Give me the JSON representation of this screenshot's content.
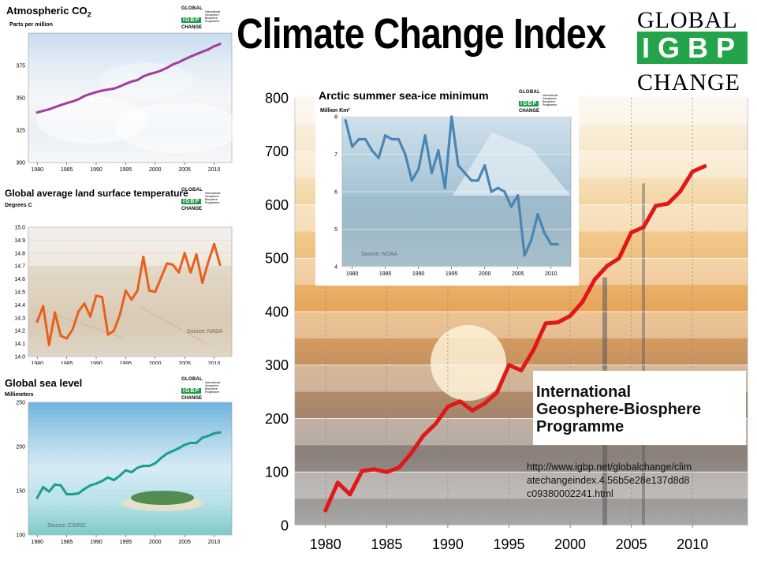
{
  "header": {
    "title": "Climate Change Index",
    "logo": {
      "line1": "GLOBAL",
      "line2": "IGBP",
      "line3": "CHANGE"
    }
  },
  "small_logo": {
    "line1": "GLOBAL",
    "line2": "IGBP",
    "line3": "CHANGE",
    "subtitle": "International Geosphere-Biosphere Programme"
  },
  "igbp": {
    "name_line1": "International",
    "name_line2": "Geosphere-Biosphere",
    "name_line3": "Programme",
    "url": "http://www.igbp.net/globalchange/climatechangeindex.4.56b5e28e137d8d8c09380002241.html"
  },
  "colors": {
    "co2": "#a33d9c",
    "temp": "#e8601c",
    "sea": "#1a9e8c",
    "ice": "#4a86b4",
    "index": "#e01818",
    "logo_green": "#23a34a"
  },
  "chart_data": [
    {
      "type": "line",
      "title": "Atmospheric CO2",
      "ylabel": "Parts per million",
      "ylim": [
        300,
        400
      ],
      "yticks": [
        300,
        325,
        350,
        375
      ],
      "xticks": [
        1980,
        1985,
        1990,
        1995,
        2000,
        2005,
        2010
      ],
      "x": [
        1980,
        1981,
        1982,
        1983,
        1984,
        1985,
        1986,
        1987,
        1988,
        1989,
        1990,
        1991,
        1992,
        1993,
        1994,
        1995,
        1996,
        1997,
        1998,
        1999,
        2000,
        2001,
        2002,
        2003,
        2004,
        2005,
        2006,
        2007,
        2008,
        2009,
        2010,
        2011
      ],
      "series": [
        {
          "values": [
            338.7,
            339.9,
            341.1,
            342.8,
            344.4,
            345.9,
            347.2,
            348.9,
            351.4,
            353.0,
            354.4,
            355.6,
            356.4,
            357.1,
            358.8,
            360.8,
            362.6,
            363.7,
            366.6,
            368.3,
            369.5,
            371.1,
            373.2,
            375.8,
            377.5,
            379.8,
            381.9,
            383.8,
            385.6,
            387.4,
            389.9,
            391.6
          ]
        }
      ]
    },
    {
      "type": "line",
      "title": "Global average land surface temperature",
      "ylabel": "Degrees C",
      "ylim": [
        14.0,
        15.0
      ],
      "yticks": [
        14.0,
        14.1,
        14.2,
        14.3,
        14.4,
        14.5,
        14.6,
        14.7,
        14.8,
        14.9,
        15.0
      ],
      "xticks": [
        1980,
        1985,
        1990,
        1995,
        2000,
        2005,
        2010
      ],
      "source": "Source: NASA",
      "x": [
        1980,
        1981,
        1982,
        1983,
        1984,
        1985,
        1986,
        1987,
        1988,
        1989,
        1990,
        1991,
        1992,
        1993,
        1994,
        1995,
        1996,
        1997,
        1998,
        1999,
        2000,
        2001,
        2002,
        2003,
        2004,
        2005,
        2006,
        2007,
        2008,
        2009,
        2010,
        2011
      ],
      "series": [
        {
          "values": [
            14.27,
            14.39,
            14.09,
            14.34,
            14.16,
            14.14,
            14.21,
            14.35,
            14.41,
            14.31,
            14.47,
            14.46,
            14.17,
            14.2,
            14.32,
            14.51,
            14.44,
            14.51,
            14.77,
            14.51,
            14.5,
            14.61,
            14.72,
            14.71,
            14.65,
            14.8,
            14.65,
            14.79,
            14.57,
            14.73,
            14.87,
            14.71
          ]
        }
      ]
    },
    {
      "type": "line",
      "title": "Global sea level",
      "ylabel": "Millimeters",
      "ylim": [
        100,
        250
      ],
      "yticks": [
        100,
        150,
        200,
        250
      ],
      "xticks": [
        1980,
        1985,
        1990,
        1995,
        2000,
        2005,
        2010
      ],
      "source": "Source: CSIRO",
      "x": [
        1980,
        1981,
        1982,
        1983,
        1984,
        1985,
        1986,
        1987,
        1988,
        1989,
        1990,
        1991,
        1992,
        1993,
        1994,
        1995,
        1996,
        1997,
        1998,
        1999,
        2000,
        2001,
        2002,
        2003,
        2004,
        2005,
        2006,
        2007,
        2008,
        2009,
        2010,
        2011
      ],
      "series": [
        {
          "values": [
            142,
            154,
            149,
            157,
            156,
            146,
            146,
            147,
            152,
            156,
            158,
            161,
            165,
            162,
            167,
            173,
            171,
            176,
            178,
            178,
            181,
            187,
            192,
            195,
            198,
            202,
            204,
            204,
            210,
            212,
            215,
            216
          ]
        }
      ]
    },
    {
      "type": "line",
      "title": "Arctic summer sea-ice minimum",
      "ylabel": "Million Km²",
      "ylim": [
        4,
        8
      ],
      "yticks": [
        4,
        5,
        6,
        7,
        8
      ],
      "xticks": [
        1980,
        1985,
        1990,
        1995,
        2000,
        2005,
        2010
      ],
      "source": "Source: NOAA",
      "x": [
        1979,
        1980,
        1981,
        1982,
        1983,
        1984,
        1985,
        1986,
        1987,
        1988,
        1989,
        1990,
        1991,
        1992,
        1993,
        1994,
        1995,
        1996,
        1997,
        1998,
        1999,
        2000,
        2001,
        2002,
        2003,
        2004,
        2005,
        2006,
        2007,
        2008,
        2009,
        2010,
        2011
      ],
      "series": [
        {
          "values": [
            7.9,
            7.2,
            7.4,
            7.4,
            7.1,
            6.9,
            7.5,
            7.4,
            7.4,
            7.0,
            6.3,
            6.6,
            7.5,
            6.5,
            7.1,
            6.1,
            8.0,
            6.7,
            6.5,
            6.3,
            6.3,
            6.7,
            6.0,
            6.1,
            6.0,
            5.6,
            5.9,
            4.3,
            4.7,
            5.4,
            4.9,
            4.6,
            4.6
          ]
        }
      ]
    },
    {
      "type": "line",
      "title": "Climate Change Index",
      "ylim": [
        0,
        800
      ],
      "yticks": [
        0,
        100,
        200,
        300,
        400,
        500,
        600,
        700,
        800
      ],
      "xticks": [
        1980,
        1985,
        1990,
        1995,
        2000,
        2005,
        2010
      ],
      "x": [
        1980,
        1981,
        1982,
        1983,
        1984,
        1985,
        1986,
        1987,
        1988,
        1989,
        1990,
        1991,
        1992,
        1993,
        1994,
        1995,
        1996,
        1997,
        1998,
        1999,
        2000,
        2001,
        2002,
        2003,
        2004,
        2005,
        2006,
        2007,
        2008,
        2009,
        2010,
        2011
      ],
      "series": [
        {
          "values": [
            28,
            80,
            58,
            102,
            105,
            100,
            108,
            135,
            168,
            190,
            222,
            232,
            215,
            228,
            248,
            300,
            290,
            328,
            378,
            380,
            392,
            418,
            460,
            485,
            500,
            548,
            558,
            598,
            602,
            625,
            662,
            672
          ]
        }
      ]
    }
  ]
}
